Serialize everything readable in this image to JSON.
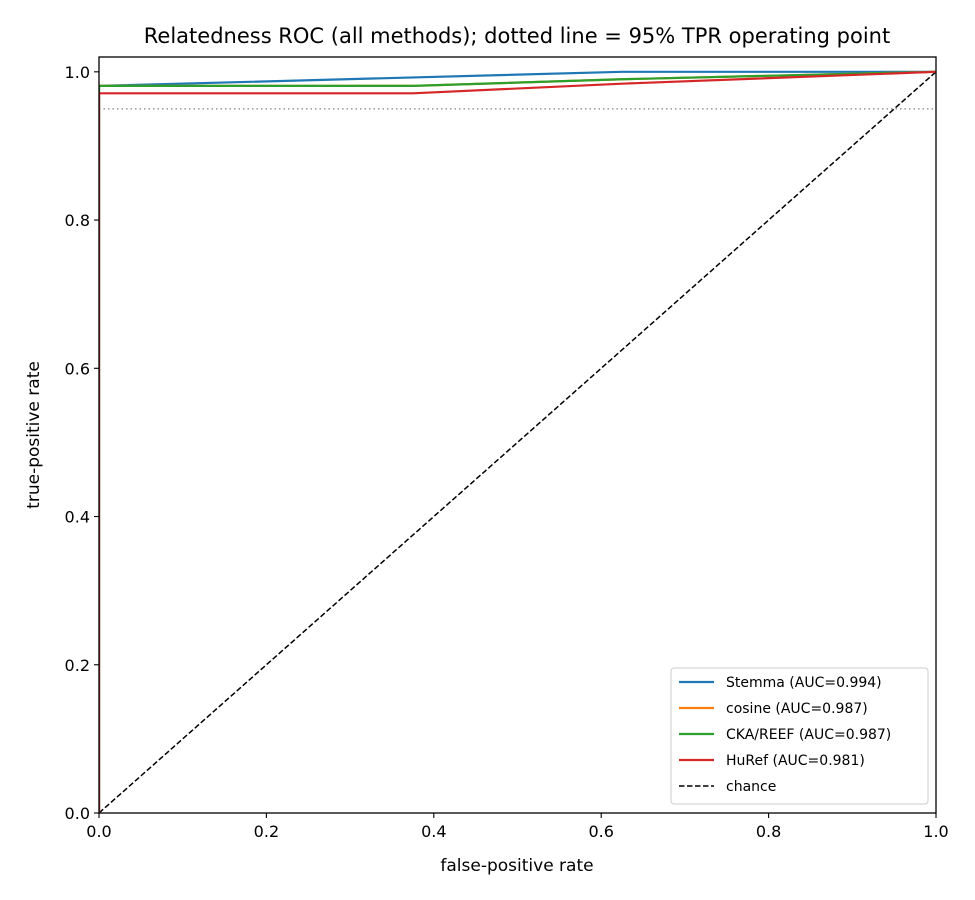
{
  "chart_data": {
    "type": "line",
    "title": "Relatedness ROC (all methods); dotted line = 95% TPR operating point",
    "xlabel": "false-positive rate",
    "ylabel": "true-positive rate",
    "xlim": [
      0,
      1
    ],
    "ylim": [
      0,
      1.02
    ],
    "xticks": [
      0.0,
      0.2,
      0.4,
      0.6,
      0.8,
      1.0
    ],
    "yticks": [
      0.0,
      0.2,
      0.4,
      0.6,
      0.8,
      1.0
    ],
    "xtick_labels": [
      "0.0",
      "0.2",
      "0.4",
      "0.6",
      "0.8",
      "1.0"
    ],
    "ytick_labels": [
      "0.0",
      "0.2",
      "0.4",
      "0.6",
      "0.8",
      "1.0"
    ],
    "grid": false,
    "legend_position": "lower-right",
    "operating_point_tpr": 0.95,
    "series": [
      {
        "name": "Stemma (AUC=0.994)",
        "color": "#1f77b4",
        "x": [
          0.0,
          0.0,
          0.0,
          0.625,
          1.0
        ],
        "y": [
          0.0,
          0.0,
          0.981,
          1.0,
          1.0
        ]
      },
      {
        "name": "cosine (AUC=0.987)",
        "color": "#ff7f0e",
        "x": [
          0.0,
          0.0,
          0.0,
          0.375,
          0.625,
          1.0
        ],
        "y": [
          0.0,
          0.0,
          0.981,
          0.981,
          0.99,
          1.0
        ]
      },
      {
        "name": "CKA/REEF (AUC=0.987)",
        "color": "#2ca02c",
        "x": [
          0.0,
          0.0,
          0.0,
          0.375,
          0.625,
          1.0
        ],
        "y": [
          0.0,
          0.0,
          0.981,
          0.981,
          0.99,
          1.0
        ]
      },
      {
        "name": "HuRef (AUC=0.981)",
        "color": "#d62728",
        "x": [
          0.0,
          0.0,
          0.0,
          0.375,
          0.625,
          1.0
        ],
        "y": [
          0.0,
          0.0,
          0.971,
          0.971,
          0.984,
          1.0
        ]
      },
      {
        "name": "chance",
        "color": "#000000",
        "dashed": true,
        "x": [
          0.0,
          1.0
        ],
        "y": [
          0.0,
          1.0
        ]
      }
    ]
  }
}
